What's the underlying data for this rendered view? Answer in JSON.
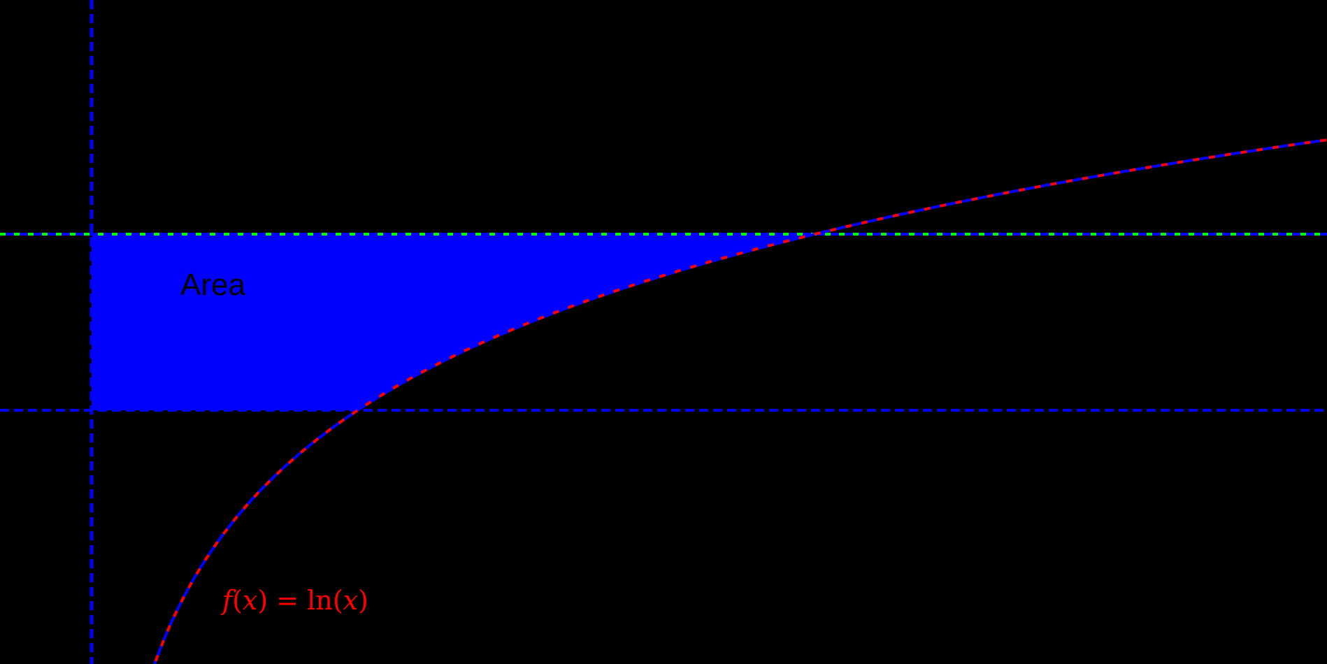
{
  "chart_data": {
    "type": "line",
    "title": "",
    "xlabel": "",
    "ylabel": "",
    "grid": false,
    "background": "#000000",
    "function": {
      "expression": "f(x) = ln(x)",
      "color": "#ff0000",
      "dash_color": "#0000ff",
      "style": "dashed red/blue"
    },
    "reference_lines": [
      {
        "orientation": "vertical",
        "x": 0,
        "color": "#0000ff",
        "style": "dashed"
      },
      {
        "orientation": "horizontal",
        "y": 1,
        "color": "#0000ff",
        "style": "dashed"
      },
      {
        "orientation": "horizontal",
        "y": 2,
        "color": "#0000ff",
        "dash_color": "#00ff00",
        "style": "dashed blue/green"
      }
    ],
    "shaded_region": {
      "label": "Area",
      "color": "#0000ff",
      "bounds": "x from 0 to e^y, y from 1 to 2"
    },
    "sample_points": [
      {
        "x": 0.65,
        "y": -0.43
      },
      {
        "x": 1,
        "y": 0
      },
      {
        "x": 2.718,
        "y": 1
      },
      {
        "x": 7.389,
        "y": 2
      },
      {
        "x": 12.62,
        "y": 2.54
      }
    ],
    "xlim": [
      -0.94,
      12.62
    ],
    "ylim": [
      -0.44,
      3.33
    ]
  },
  "labels": {
    "area": "Area",
    "function_parts": {
      "f": "f",
      "open1": "(",
      "x1": "x",
      "close1": ")",
      "eq": " = ",
      "ln": "ln",
      "open2": "(",
      "x2": "x",
      "close2": ")"
    }
  },
  "colors": {
    "background": "#000000",
    "area_fill": "#0000ff",
    "curve": "#ff0000",
    "curve_dash": "#0000ff",
    "axis_line": "#0000ff",
    "upper_line_dash": "#00ff00"
  }
}
